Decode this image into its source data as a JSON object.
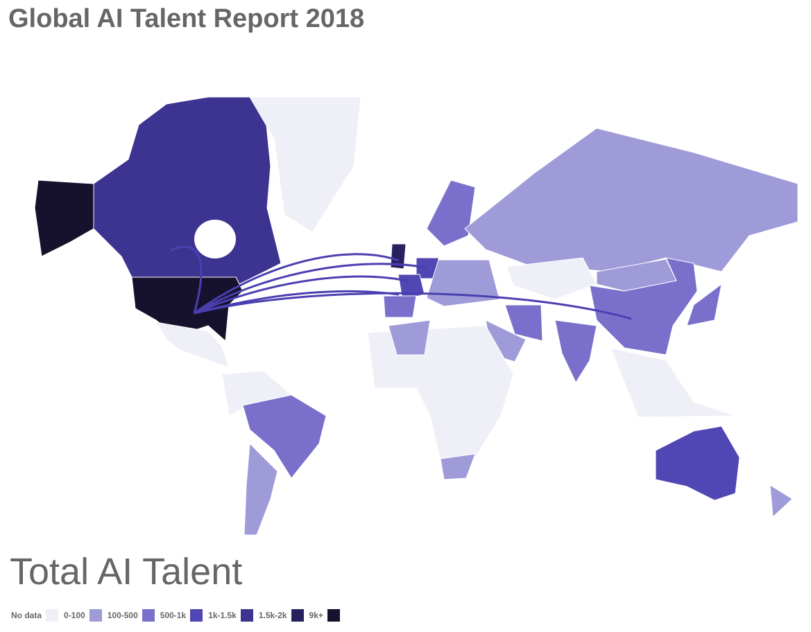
{
  "title": "Global AI Talent Report 2018",
  "map": {
    "title": "Total AI Talent",
    "legend": [
      {
        "label": "No data",
        "color": "#efeff7"
      },
      {
        "label": "0-100",
        "color": "#9f9ad8"
      },
      {
        "label": "100-500",
        "color": "#7a70cc"
      },
      {
        "label": "500-1k",
        "color": "#5046b4"
      },
      {
        "label": "1k-1.5k",
        "color": "#3d3390"
      },
      {
        "label": "1.5k-2k",
        "color": "#282160"
      },
      {
        "label": "9k+",
        "color": "#16122e"
      }
    ]
  }
}
